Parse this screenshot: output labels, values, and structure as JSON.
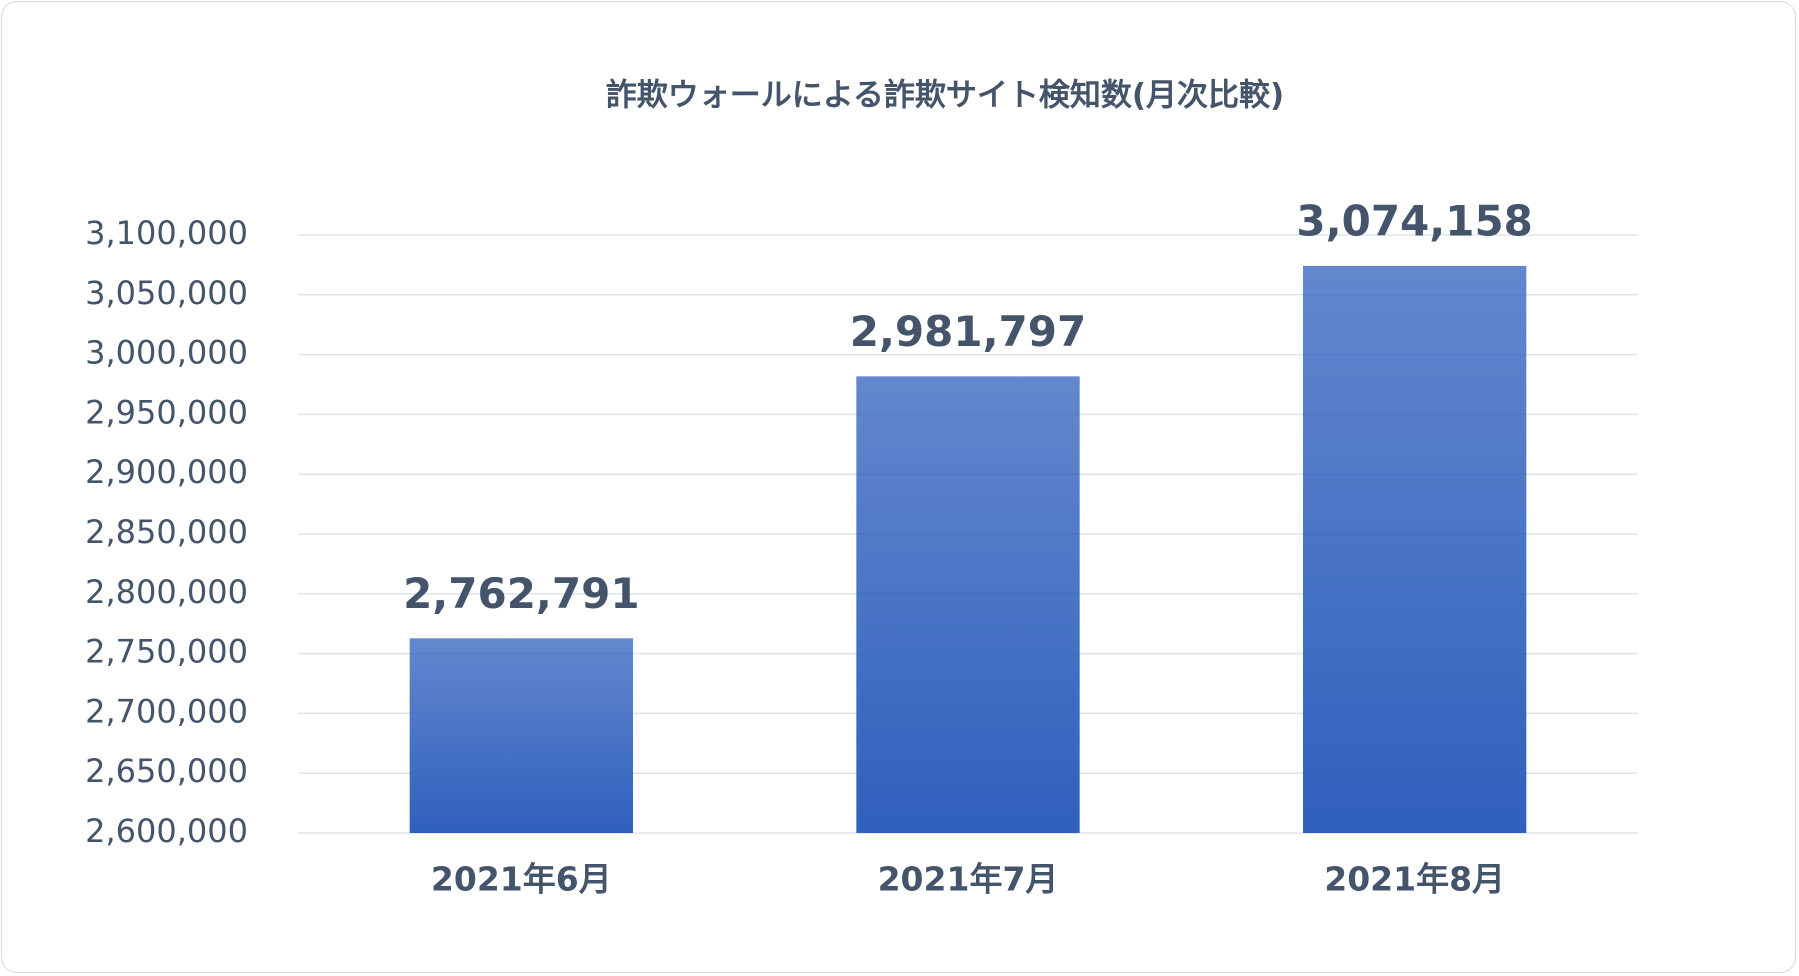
{
  "chart_data": {
    "type": "bar",
    "title": "詐欺ウォールによる詐欺サイト検知数(月次比較)",
    "categories": [
      "2021年6月",
      "2021年7月",
      "2021年8月"
    ],
    "values": [
      2762791,
      2981797,
      3074158
    ],
    "value_labels": [
      "2,762,791",
      "2,981,797",
      "3,074,158"
    ],
    "color": "#2f60bd",
    "ylim": [
      2600000,
      3100000
    ],
    "yticks": [
      {
        "value": 2600000,
        "label": "2,600,000"
      },
      {
        "value": 2650000,
        "label": "2,650,000"
      },
      {
        "value": 2700000,
        "label": "2,700,000"
      },
      {
        "value": 2750000,
        "label": "2,750,000"
      },
      {
        "value": 2800000,
        "label": "2,800,000"
      },
      {
        "value": 2850000,
        "label": "2,850,000"
      },
      {
        "value": 2900000,
        "label": "2,900,000"
      },
      {
        "value": 2950000,
        "label": "2,950,000"
      },
      {
        "value": 3000000,
        "label": "3,000,000"
      },
      {
        "value": 3050000,
        "label": "3,050,000"
      },
      {
        "value": 3100000,
        "label": "3,100,000"
      }
    ],
    "grid": true
  }
}
